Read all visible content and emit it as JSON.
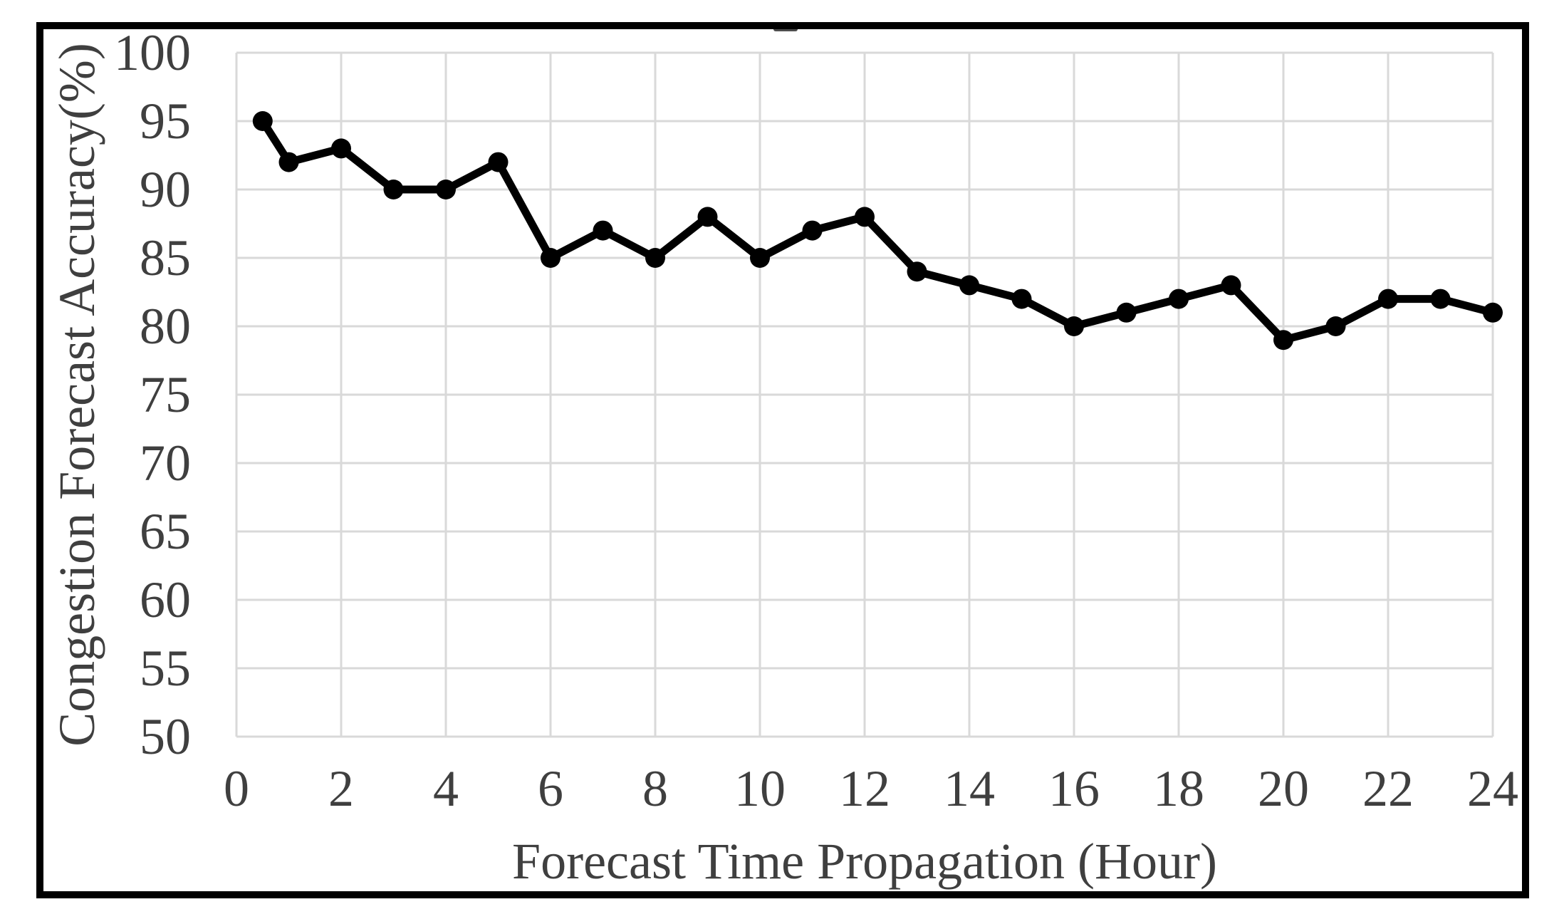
{
  "figure": {
    "background_color": "#ffffff",
    "border_color": "#000000",
    "artifact": "cropped-text-smudge-top-center"
  },
  "chart_data": {
    "type": "line",
    "title": "",
    "xlabel": "Forecast Time Propagation (Hour)",
    "ylabel": "Congestion Forecast Accuracy(%)",
    "series": [
      {
        "name": "Congestion Forecast Accuracy",
        "x": [
          0.5,
          1,
          2,
          3,
          4,
          5,
          6,
          7,
          8,
          9,
          10,
          11,
          12,
          13,
          14,
          15,
          16,
          17,
          18,
          19,
          20,
          21,
          22,
          23,
          24
        ],
        "y": [
          95,
          92,
          93,
          90,
          90,
          92,
          85,
          87,
          85,
          88,
          85,
          87,
          88,
          84,
          83,
          82,
          80,
          81,
          82,
          83,
          79,
          80,
          82,
          82,
          81
        ]
      }
    ],
    "xlim": [
      0,
      24
    ],
    "ylim": [
      50,
      100
    ],
    "x_ticks": [
      0,
      2,
      4,
      6,
      8,
      10,
      12,
      14,
      16,
      18,
      20,
      22,
      24
    ],
    "y_ticks": [
      50,
      55,
      60,
      65,
      70,
      75,
      80,
      85,
      90,
      95,
      100
    ],
    "grid": true,
    "legend": false,
    "line_color": "#000000",
    "marker": "circle",
    "marker_color": "#000000",
    "gridline_color": "#d9d9d9",
    "tick_label_color": "#3f3f3f",
    "axis_title_color": "#3f3f3f"
  }
}
